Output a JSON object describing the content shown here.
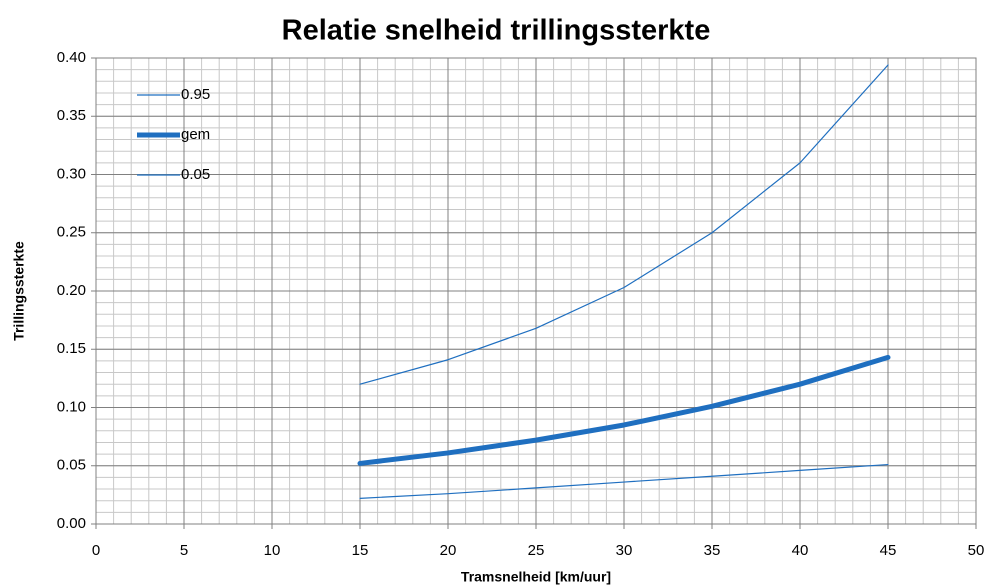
{
  "chart_data": {
    "type": "line",
    "title": "Relatie snelheid trillingssterkte",
    "x_label": "Tramsnelheid [km/uur]",
    "y_label": "Trillingssterkte",
    "x": [
      15,
      20,
      25,
      30,
      35,
      40,
      45
    ],
    "series": [
      {
        "name": "0.95",
        "color": "#1f6fc0",
        "line_width": 1.2,
        "values": [
          0.12,
          0.141,
          0.168,
          0.203,
          0.25,
          0.31,
          0.394
        ]
      },
      {
        "name": "gem",
        "color": "#1f6fc0",
        "line_width": 5,
        "values": [
          0.052,
          0.061,
          0.072,
          0.085,
          0.101,
          0.12,
          0.143
        ]
      },
      {
        "name": "0.05",
        "color": "#1f6fc0",
        "line_width": 1.2,
        "values": [
          0.022,
          0.026,
          0.031,
          0.036,
          0.041,
          0.046,
          0.051
        ]
      }
    ],
    "xlim": [
      0,
      50
    ],
    "xticks": [
      0,
      5,
      10,
      15,
      20,
      25,
      30,
      35,
      40,
      45,
      50
    ],
    "ylim": [
      0,
      0.4
    ],
    "yticks": [
      {
        "value": 0,
        "label": "0.00"
      },
      {
        "value": 0.05,
        "label": "0.05"
      },
      {
        "value": 0.1,
        "label": "0.10"
      },
      {
        "value": 0.15,
        "label": "0.15"
      },
      {
        "value": 0.2,
        "label": "0.20"
      },
      {
        "value": 0.25,
        "label": "0.25"
      },
      {
        "value": 0.3,
        "label": "0.30"
      },
      {
        "value": 0.35,
        "label": "0.35"
      },
      {
        "value": 0.4,
        "label": "0.40"
      }
    ],
    "grid": true,
    "minor_grid": {
      "x": 1,
      "y": 0.01
    },
    "legend": "top-left"
  }
}
